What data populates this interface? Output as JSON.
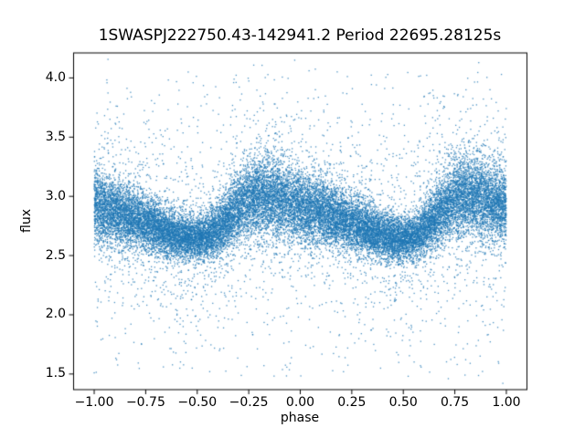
{
  "chart_data": {
    "type": "scatter",
    "title": "1SWASPJ222750.43-142941.2 Period 22695.28125s",
    "xlabel": "phase",
    "ylabel": "flux",
    "marker_color": "#1f77b4",
    "marker_alpha": 0.8,
    "marker_size_px": 1.3,
    "n_points": 27000,
    "seed": 20230417,
    "grid": false,
    "legend": false,
    "xlim": [
      -1.1,
      1.1
    ],
    "ylim": [
      1.368,
      4.211
    ],
    "phase_range": [
      -1.0,
      1.0
    ],
    "xticks": {
      "values": [
        -1.0,
        -0.75,
        -0.5,
        -0.25,
        0.0,
        0.25,
        0.5,
        0.75,
        1.0
      ],
      "labels": [
        "−1.00",
        "−0.75",
        "−0.50",
        "−0.25",
        "0.00",
        "0.25",
        "0.50",
        "0.75",
        "1.00"
      ]
    },
    "yticks": {
      "values": [
        1.5,
        2.0,
        2.5,
        3.0,
        3.5,
        4.0
      ],
      "labels": [
        "1.5",
        "2.0",
        "2.5",
        "3.0",
        "3.5",
        "4.0"
      ]
    },
    "mean_flux_curve": {
      "phase": [
        0.0,
        0.05,
        0.1,
        0.15,
        0.2,
        0.25,
        0.3,
        0.35,
        0.4,
        0.45,
        0.5,
        0.55,
        0.6,
        0.65,
        0.7,
        0.75,
        0.8,
        0.85,
        0.9,
        0.95,
        1.0
      ],
      "flux": [
        2.92,
        2.89,
        2.87,
        2.84,
        2.81,
        2.77,
        2.74,
        2.7,
        2.67,
        2.65,
        2.64,
        2.66,
        2.72,
        2.81,
        2.91,
        2.98,
        3.01,
        3.0,
        2.97,
        2.95,
        2.92
      ]
    },
    "scatter_model": {
      "core_sigma_base": 0.095,
      "core_sigma_brightness_scale": 0.2,
      "tail_fraction": 0.1,
      "tail_extra_sigma": 0.28,
      "outlier_fraction": 0.025,
      "outlier_flux_range": [
        1.48,
        4.07
      ]
    }
  }
}
